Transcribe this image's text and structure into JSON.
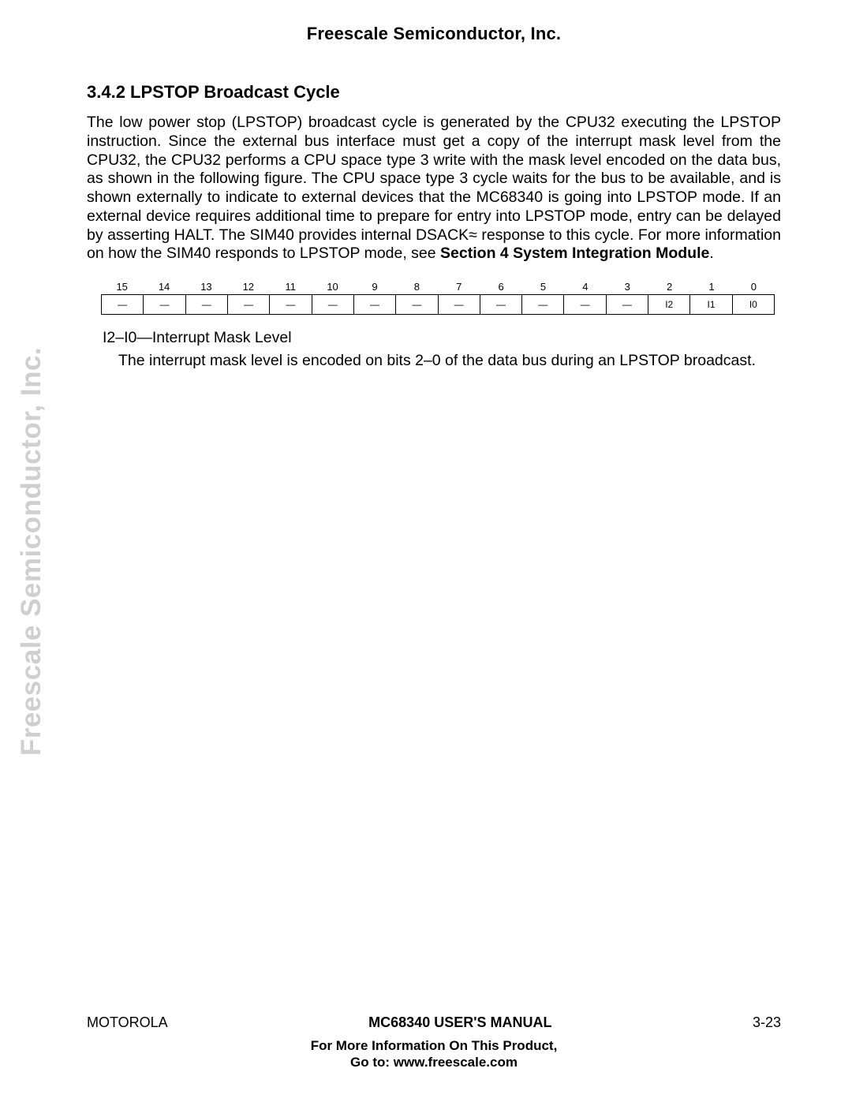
{
  "header": {
    "company": "Freescale Semiconductor, Inc."
  },
  "section": {
    "number_title": "3.4.2 LPSTOP Broadcast Cycle",
    "paragraph_pre": "The low power stop (LPSTOP) broadcast cycle is generated by the CPU32 executing the LPSTOP instruction. Since the external bus interface must get a copy of the interrupt mask level from the CPU32, the CPU32 performs a CPU space type 3 write with the mask level encoded on the data bus, as shown in the following figure. The CPU space type 3 cycle waits for the bus to be available, and is shown externally to indicate to external devices that the MC68340 is going into LPSTOP mode. If an external device requires additional time to prepare for entry into LPSTOP mode, entry can be delayed by asserting HALT. The SIM40 provides internal DSACK≈ response to this cycle. For more information on how the SIM40 responds to LPSTOP mode, see ",
    "paragraph_bold": "Section 4 System Integration Module",
    "paragraph_post": "."
  },
  "bit_table": {
    "bit_numbers": [
      "15",
      "14",
      "13",
      "12",
      "11",
      "10",
      "9",
      "8",
      "7",
      "6",
      "5",
      "4",
      "3",
      "2",
      "1",
      "0"
    ],
    "cells": [
      "—",
      "—",
      "—",
      "—",
      "—",
      "—",
      "—",
      "—",
      "—",
      "—",
      "—",
      "—",
      "—",
      "I2",
      "I1",
      "I0"
    ],
    "border_color": "#000000",
    "font_size_header": 13,
    "font_size_cells": 12
  },
  "field": {
    "label": "I2–I0—Interrupt Mask Level",
    "desc": "The interrupt mask level is encoded on bits 2–0 of the data bus during an LPSTOP broadcast."
  },
  "watermark": {
    "text": "Freescale Semiconductor, Inc.",
    "color": "#cfcfcf"
  },
  "footer": {
    "left": "MOTOROLA",
    "center": "MC68340 USER'S MANUAL",
    "right": "3-23",
    "line2a": "For More Information On This Product,",
    "line2b": "Go to: www.freescale.com"
  },
  "colors": {
    "text": "#000000",
    "background": "#ffffff"
  }
}
